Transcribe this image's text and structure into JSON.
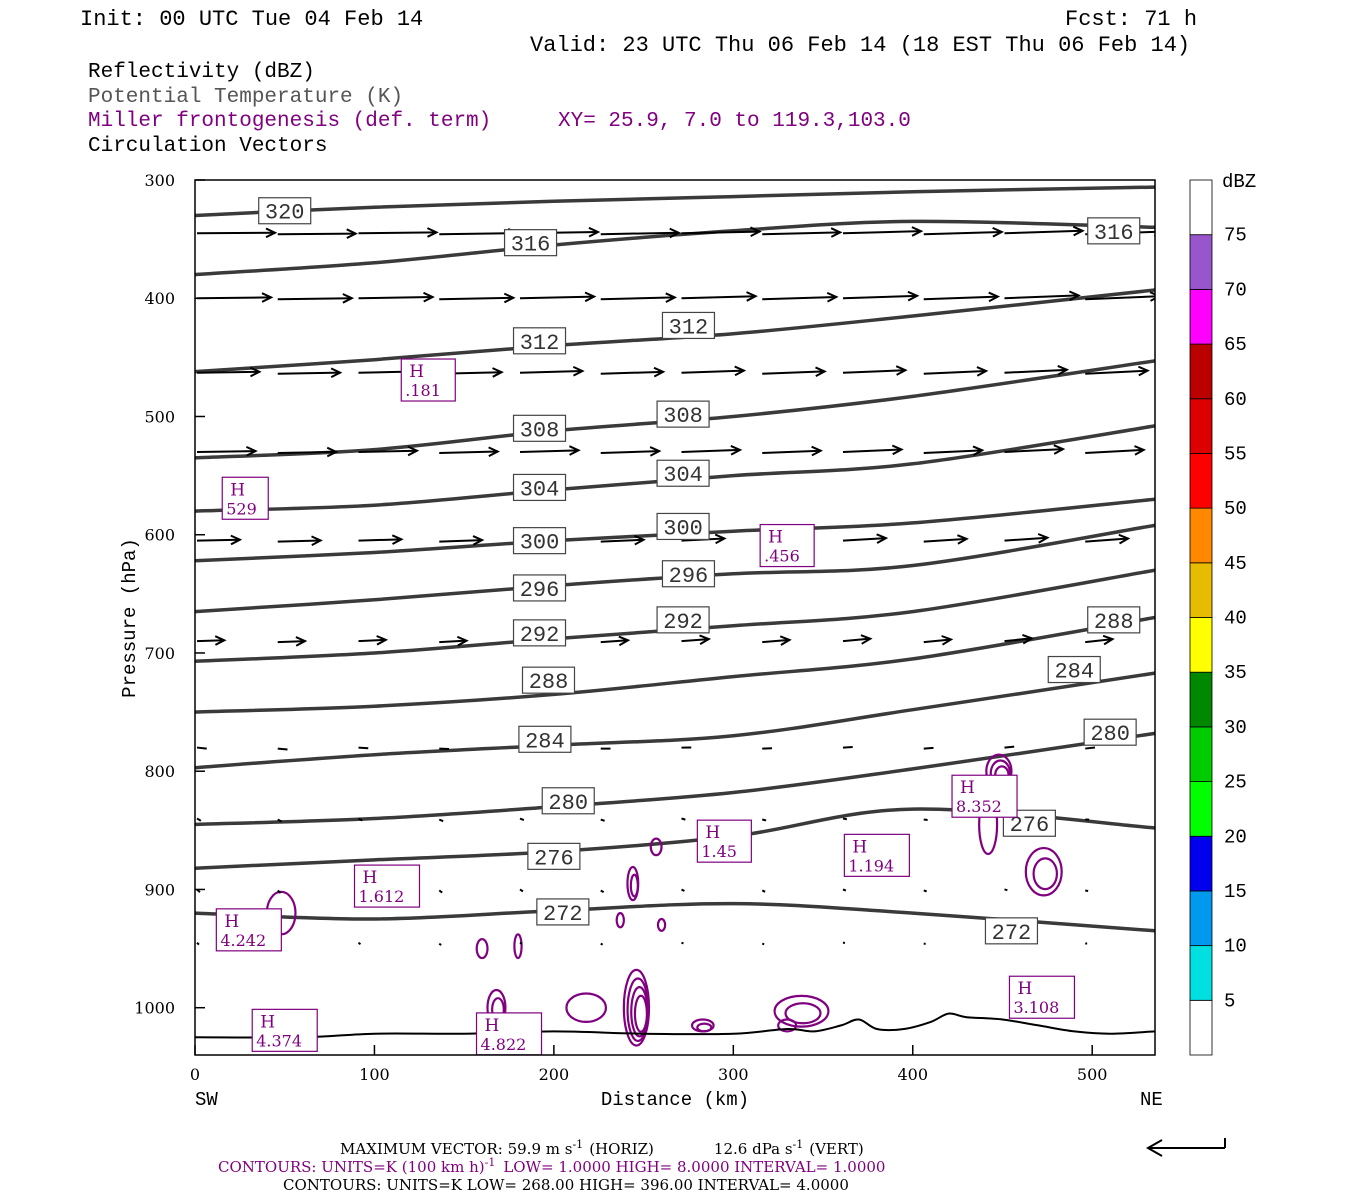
{
  "header": {
    "init": "Init: 00 UTC Tue 04 Feb 14",
    "fcst": "Fcst:   71 h",
    "valid": "Valid: 23 UTC Thu 06 Feb 14 (18 EST Thu 06 Feb 14)"
  },
  "legend": {
    "reflectivity": "Reflectivity (dBZ)",
    "theta": "Potential Temperature (K)",
    "miller": "Miller frontogenesis (def. term)",
    "xy": "XY=  25.9,  7.0 to 119.3,103.0",
    "vectors": "Circulation Vectors"
  },
  "colors": {
    "theta": "#3a3a3a",
    "miller": "#800080",
    "vector": "#000000",
    "terrain": "#000000"
  },
  "colorbar": {
    "unit": "dBZ",
    "labels": [
      "5",
      "10",
      "15",
      "20",
      "25",
      "30",
      "35",
      "40",
      "45",
      "50",
      "55",
      "60",
      "65",
      "70",
      "75"
    ],
    "colors": [
      "#ffffff",
      "#00e0e0",
      "#0099ee",
      "#0000ee",
      "#00ff00",
      "#00cc00",
      "#008800",
      "#ffff00",
      "#e6bb00",
      "#ff8800",
      "#ff0000",
      "#dd0000",
      "#bb0000",
      "#ff00ff",
      "#9955cc",
      "#ffffff"
    ]
  },
  "chart_data": {
    "type": "cross-section",
    "xlabel": "Distance (km)",
    "ylabel": "Pressure (hPa)",
    "xlim": [
      0,
      535
    ],
    "ylim": [
      1040,
      300
    ],
    "xticks": [
      0,
      100,
      200,
      300,
      400,
      500
    ],
    "yticks": [
      300,
      400,
      500,
      600,
      700,
      800,
      900,
      1000
    ],
    "left_end_label": "SW",
    "right_end_label": "NE",
    "theta_isentropes": [
      {
        "value": 320,
        "points": [
          [
            0,
            330
          ],
          [
            100,
            323
          ],
          [
            200,
            318
          ],
          [
            300,
            314
          ],
          [
            400,
            310
          ],
          [
            535,
            306
          ]
        ]
      },
      {
        "value": 316,
        "points": [
          [
            0,
            380
          ],
          [
            100,
            370
          ],
          [
            200,
            355
          ],
          [
            300,
            343
          ],
          [
            400,
            335
          ],
          [
            535,
            340
          ]
        ]
      },
      {
        "value": 312,
        "points": [
          [
            0,
            462
          ],
          [
            100,
            452
          ],
          [
            200,
            440
          ],
          [
            300,
            430
          ],
          [
            400,
            415
          ],
          [
            535,
            393
          ]
        ]
      },
      {
        "value": 308,
        "points": [
          [
            0,
            535
          ],
          [
            100,
            528
          ],
          [
            200,
            512
          ],
          [
            300,
            500
          ],
          [
            400,
            483
          ],
          [
            535,
            453
          ]
        ]
      },
      {
        "value": 304,
        "points": [
          [
            0,
            580
          ],
          [
            100,
            575
          ],
          [
            200,
            562
          ],
          [
            300,
            550
          ],
          [
            400,
            540
          ],
          [
            535,
            508
          ]
        ]
      },
      {
        "value": 300,
        "points": [
          [
            0,
            622
          ],
          [
            100,
            615
          ],
          [
            200,
            605
          ],
          [
            300,
            597
          ],
          [
            400,
            590
          ],
          [
            535,
            570
          ]
        ]
      },
      {
        "value": 296,
        "points": [
          [
            0,
            665
          ],
          [
            100,
            655
          ],
          [
            200,
            643
          ],
          [
            300,
            633
          ],
          [
            400,
            626
          ],
          [
            535,
            592
          ]
        ]
      },
      {
        "value": 292,
        "points": [
          [
            0,
            707
          ],
          [
            100,
            700
          ],
          [
            200,
            688
          ],
          [
            300,
            677
          ],
          [
            400,
            665
          ],
          [
            535,
            630
          ]
        ]
      },
      {
        "value": 288,
        "points": [
          [
            0,
            750
          ],
          [
            100,
            745
          ],
          [
            200,
            735
          ],
          [
            300,
            720
          ],
          [
            400,
            705
          ],
          [
            535,
            670
          ]
        ]
      },
      {
        "value": 284,
        "points": [
          [
            0,
            797
          ],
          [
            100,
            786
          ],
          [
            200,
            778
          ],
          [
            300,
            770
          ],
          [
            400,
            748
          ],
          [
            535,
            717
          ]
        ]
      },
      {
        "value": 280,
        "points": [
          [
            0,
            845
          ],
          [
            100,
            840
          ],
          [
            200,
            830
          ],
          [
            300,
            818
          ],
          [
            400,
            798
          ],
          [
            535,
            768
          ]
        ]
      },
      {
        "value": 276,
        "points": [
          [
            0,
            882
          ],
          [
            100,
            875
          ],
          [
            200,
            868
          ],
          [
            300,
            855
          ],
          [
            400,
            832
          ],
          [
            535,
            848
          ]
        ]
      },
      {
        "value": 272,
        "points": [
          [
            0,
            920
          ],
          [
            100,
            925
          ],
          [
            200,
            918
          ],
          [
            300,
            912
          ],
          [
            400,
            920
          ],
          [
            535,
            935
          ]
        ]
      }
    ],
    "theta_labels": [
      {
        "value": 320,
        "x": 50,
        "p": 326
      },
      {
        "value": 316,
        "x": 187,
        "p": 353
      },
      {
        "value": 316,
        "x": 512,
        "p": 343
      },
      {
        "value": 312,
        "x": 192,
        "p": 436
      },
      {
        "value": 312,
        "x": 275,
        "p": 423
      },
      {
        "value": 308,
        "x": 192,
        "p": 510
      },
      {
        "value": 308,
        "x": 272,
        "p": 498
      },
      {
        "value": 304,
        "x": 192,
        "p": 560
      },
      {
        "value": 304,
        "x": 272,
        "p": 548
      },
      {
        "value": 300,
        "x": 192,
        "p": 605
      },
      {
        "value": 300,
        "x": 272,
        "p": 593
      },
      {
        "value": 296,
        "x": 192,
        "p": 645
      },
      {
        "value": 296,
        "x": 275,
        "p": 633
      },
      {
        "value": 292,
        "x": 192,
        "p": 683
      },
      {
        "value": 292,
        "x": 272,
        "p": 672
      },
      {
        "value": 288,
        "x": 197,
        "p": 723
      },
      {
        "value": 288,
        "x": 512,
        "p": 672
      },
      {
        "value": 284,
        "x": 195,
        "p": 773
      },
      {
        "value": 284,
        "x": 490,
        "p": 714
      },
      {
        "value": 280,
        "x": 208,
        "p": 825
      },
      {
        "value": 280,
        "x": 510,
        "p": 767
      },
      {
        "value": 276,
        "x": 200,
        "p": 872
      },
      {
        "value": 276,
        "x": 465,
        "p": 844
      },
      {
        "value": 272,
        "x": 205,
        "p": 919
      },
      {
        "value": 272,
        "x": 455,
        "p": 935
      }
    ],
    "miller_maxima": [
      {
        "label": "H",
        "value": ".181",
        "x": 130,
        "p": 470
      },
      {
        "label": "H",
        "value": "529",
        "x": 28,
        "p": 570
      },
      {
        "label": "H",
        "value": ".456",
        "x": 330,
        "p": 610
      },
      {
        "label": "H",
        "value": "8.352",
        "x": 440,
        "p": 822
      },
      {
        "label": "H",
        "value": "1.45",
        "x": 295,
        "p": 860
      },
      {
        "label": "H",
        "value": "1.194",
        "x": 380,
        "p": 872
      },
      {
        "label": "H",
        "value": "1.612",
        "x": 107,
        "p": 898
      },
      {
        "label": "H",
        "value": "4.242",
        "x": 30,
        "p": 935
      },
      {
        "label": "H",
        "value": "3.108",
        "x": 472,
        "p": 992
      },
      {
        "label": "H",
        "value": "4.374",
        "x": 50,
        "p": 1020
      },
      {
        "label": "H",
        "value": "4.822",
        "x": 175,
        "p": 1023
      }
    ],
    "miller_contours": [
      {
        "x": 448,
        "p": 800,
        "rx": 7,
        "rp": 14,
        "n": 3
      },
      {
        "x": 442,
        "p": 845,
        "rx": 5,
        "rp": 25,
        "n": 1
      },
      {
        "x": 473,
        "p": 885,
        "rx": 10,
        "rp": 20,
        "n": 2
      },
      {
        "x": 246,
        "p": 1000,
        "rx": 7,
        "rp": 32,
        "n": 4
      },
      {
        "x": 218,
        "p": 1000,
        "rx": 11,
        "rp": 12,
        "n": 1
      },
      {
        "x": 168,
        "p": 1000,
        "rx": 5,
        "rp": 15,
        "n": 2
      },
      {
        "x": 338,
        "p": 1003,
        "rx": 15,
        "rp": 13,
        "n": 2
      },
      {
        "x": 257,
        "p": 864,
        "rx": 3,
        "rp": 7,
        "n": 1
      },
      {
        "x": 244,
        "p": 895,
        "rx": 3,
        "rp": 14,
        "n": 2
      },
      {
        "x": 48,
        "p": 920,
        "rx": 8,
        "rp": 18,
        "n": 1
      },
      {
        "x": 160,
        "p": 950,
        "rx": 3,
        "rp": 8,
        "n": 1
      },
      {
        "x": 180,
        "p": 948,
        "rx": 2,
        "rp": 10,
        "n": 1
      },
      {
        "x": 283,
        "p": 1015,
        "rx": 6,
        "rp": 5,
        "n": 2
      },
      {
        "x": 237,
        "p": 926,
        "rx": 2,
        "rp": 6,
        "n": 1
      },
      {
        "x": 260,
        "p": 930,
        "rx": 2,
        "rp": 5,
        "n": 1
      },
      {
        "x": 330,
        "p": 1015,
        "rx": 5,
        "rp": 5,
        "n": 1
      },
      {
        "x": 460,
        "p": 990,
        "rx": 4,
        "rp": 6,
        "n": 1
      }
    ],
    "terrain": [
      [
        0,
        1025
      ],
      [
        60,
        1025
      ],
      [
        100,
        1022
      ],
      [
        150,
        1022
      ],
      [
        200,
        1020
      ],
      [
        250,
        1022
      ],
      [
        300,
        1022
      ],
      [
        330,
        1018
      ],
      [
        345,
        1020
      ],
      [
        360,
        1015
      ],
      [
        370,
        1010
      ],
      [
        380,
        1018
      ],
      [
        395,
        1018
      ],
      [
        410,
        1012
      ],
      [
        420,
        1005
      ],
      [
        430,
        1008
      ],
      [
        450,
        1010
      ],
      [
        470,
        1015
      ],
      [
        490,
        1020
      ],
      [
        510,
        1022
      ],
      [
        535,
        1020
      ]
    ],
    "vector_rows": [
      {
        "p": 345,
        "u": 40,
        "v": -0.5
      },
      {
        "p": 400,
        "u": 38,
        "v": -0.8
      },
      {
        "p": 463,
        "u": 32,
        "v": -0.6
      },
      {
        "p": 530,
        "u": 30,
        "v": -0.5
      },
      {
        "p": 605,
        "u": 22,
        "v": -0.4
      },
      {
        "p": 690,
        "u": 14,
        "v": -0.3
      },
      {
        "p": 780,
        "u": 5,
        "v": 0.3
      },
      {
        "p": 840,
        "u": 2,
        "v": 0.6
      },
      {
        "p": 900,
        "u": 1.5,
        "v": 0.7
      },
      {
        "p": 945,
        "u": 1,
        "v": 0.5
      }
    ],
    "vector_x": [
      0,
      45,
      90,
      135,
      180,
      225,
      270,
      315,
      360,
      405,
      450,
      495,
      535
    ]
  },
  "footer": {
    "max_vector_label": "MAXIMUM VECTOR:  59.9 m s",
    "max_vector_exp": "-1",
    "max_vector_horiz": "(HORIZ)",
    "max_vector_vert_val": "12.6 dPa s",
    "max_vector_vert_exp": "-1",
    "max_vector_vert_unit": "(VERT)",
    "contours1_a": "CONTOURS:  UNITS=K (100 km h)",
    "contours1_exp": "-1",
    "contours1_b": "LOW=   1.0000       HIGH=   8.0000       INTERVAL=    1.0000",
    "contours2": "CONTOURS:  UNITS=K  LOW=   268.00        HIGH=   396.00        INTERVAL=     4.0000"
  }
}
